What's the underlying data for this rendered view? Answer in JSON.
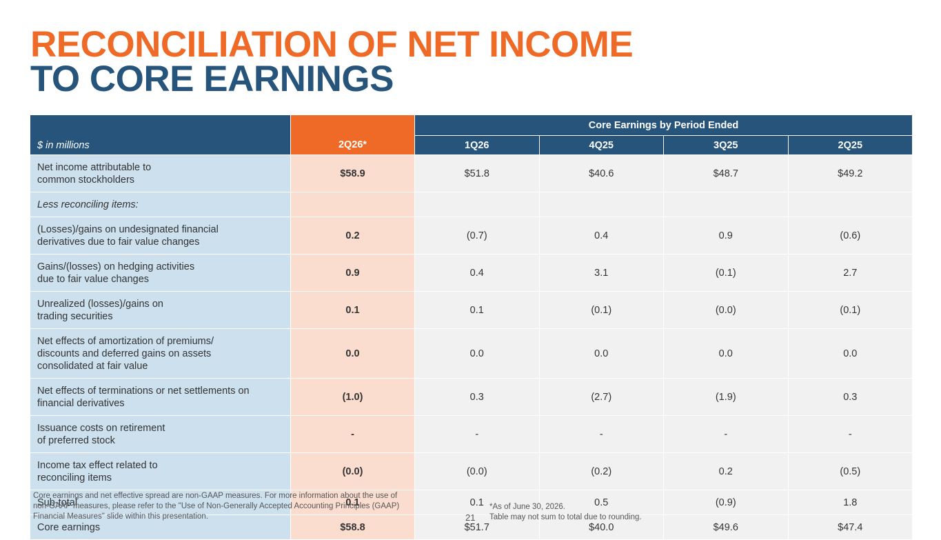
{
  "title": {
    "line1": "RECONCILIATION OF NET INCOME",
    "line2": "TO CORE EARNINGS"
  },
  "table": {
    "units_label": "$ in millions",
    "group_header": "Core Earnings by Period Ended",
    "current_period": "2Q26*",
    "periods": [
      "1Q26",
      "4Q25",
      "3Q25",
      "2Q25"
    ],
    "rows": [
      {
        "label1": "Net income attributable to",
        "label2": "common stockholders",
        "label3": "",
        "current": "$58.9",
        "values": [
          "$51.8",
          "$40.6",
          "$48.7",
          "$49.2"
        ]
      },
      {
        "label1": "Less reconciling items:",
        "label2": "",
        "label3": "",
        "current": "",
        "values": [
          "",
          "",
          "",
          ""
        ]
      },
      {
        "label1": "(Losses)/gains on undesignated financial",
        "label2": "derivatives due to fair value changes",
        "label3": "",
        "current": "0.2",
        "values": [
          "(0.7)",
          "0.4",
          "0.9",
          "(0.6)"
        ]
      },
      {
        "label1": "Gains/(losses) on hedging activities",
        "label2": "due to fair value changes",
        "label3": "",
        "current": "0.9",
        "values": [
          "0.4",
          "3.1",
          "(0.1)",
          "2.7"
        ]
      },
      {
        "label1": "Unrealized (losses)/gains on",
        "label2": "trading securities",
        "label3": "",
        "current": "0.1",
        "values": [
          "0.1",
          "(0.1)",
          "(0.0)",
          "(0.1)"
        ]
      },
      {
        "label1": "Net effects of amortization of premiums/",
        "label2": "discounts and deferred gains on assets",
        "label3": "consolidated at fair value",
        "current": "0.0",
        "values": [
          "0.0",
          "0.0",
          "0.0",
          "0.0"
        ]
      },
      {
        "label1": "Net effects of terminations or net settlements on",
        "label2": "financial derivatives",
        "label3": "",
        "current": "(1.0)",
        "values": [
          "0.3",
          "(2.7)",
          "(1.9)",
          "0.3"
        ]
      },
      {
        "label1": "Issuance costs on retirement",
        "label2": "of preferred stock",
        "label3": "",
        "current": "-",
        "values": [
          "-",
          "-",
          "-",
          "-"
        ]
      },
      {
        "label1": "Income tax effect related to",
        "label2": "reconciling items",
        "label3": "",
        "current": "(0.0)",
        "values": [
          "(0.0)",
          "(0.2)",
          "0.2",
          "(0.5)"
        ]
      },
      {
        "label1": "Sub-total",
        "label2": "",
        "label3": "",
        "current": "0.1",
        "values": [
          "0.1",
          "0.5",
          "(0.9)",
          "1.8"
        ]
      },
      {
        "label1": "Core earnings",
        "label2": "",
        "label3": "",
        "current": "$58.8",
        "values": [
          "$51.7",
          "$40.0",
          "$49.6",
          "$47.4"
        ]
      }
    ]
  },
  "footer": {
    "disclaimer1": "Core earnings and net effective spread are non-GAAP measures. For more information about the use of",
    "disclaimer2": "non-GAAP measures, please refer to the \"Use of Non-Generally Accepted Accounting Principles (GAAP)",
    "disclaimer3": "Financial Measures\" slide within this presentation.",
    "page_number": "21",
    "note1": "*As of June 30, 2026.",
    "note2": "Table may not sum to total due to rounding."
  },
  "colors": {
    "orange": "#EE6A26",
    "navy": "#26547A",
    "label_bg": "#CCE0EE",
    "current_bg": "#FBDDD0",
    "value_bg": "#F1F1F1"
  }
}
